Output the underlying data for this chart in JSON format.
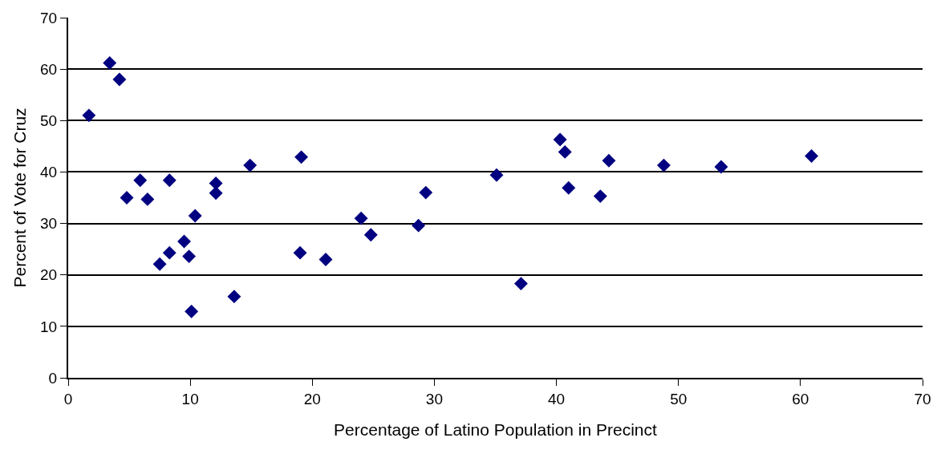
{
  "chart_data": {
    "type": "scatter",
    "xlabel": "Percentage of Latino Population in Precinct",
    "ylabel": "Percent of Vote for Cruz",
    "x": [
      1.7,
      3.4,
      4.2,
      4.8,
      5.9,
      6.5,
      7.5,
      8.3,
      8.3,
      9.5,
      9.9,
      10.1,
      10.4,
      12.1,
      12.1,
      13.6,
      14.9,
      19.0,
      19.1,
      21.1,
      24.0,
      24.8,
      28.7,
      29.3,
      35.1,
      37.1,
      40.3,
      40.7,
      41.0,
      43.6,
      44.3,
      48.8,
      53.5,
      60.9
    ],
    "values": [
      51,
      61.2,
      58,
      35,
      38.4,
      34.7,
      22.1,
      24.3,
      38.4,
      26.5,
      23.6,
      12.9,
      31.5,
      37.8,
      35.9,
      15.8,
      41.3,
      24.3,
      42.9,
      23.0,
      31.0,
      27.8,
      29.6,
      36.0,
      39.4,
      18.3,
      46.3,
      43.9,
      36.9,
      35.3,
      42.2,
      41.3,
      41.0,
      43.1
    ],
    "color": "#000080",
    "marker": "diamond",
    "xlim": [
      0,
      70
    ],
    "ylim": [
      0,
      70
    ],
    "xticks": [
      0,
      10,
      20,
      30,
      40,
      50,
      60,
      70
    ],
    "yticks": [
      0,
      10,
      20,
      30,
      40,
      50,
      60,
      70
    ],
    "grid": "y",
    "legend": false
  }
}
